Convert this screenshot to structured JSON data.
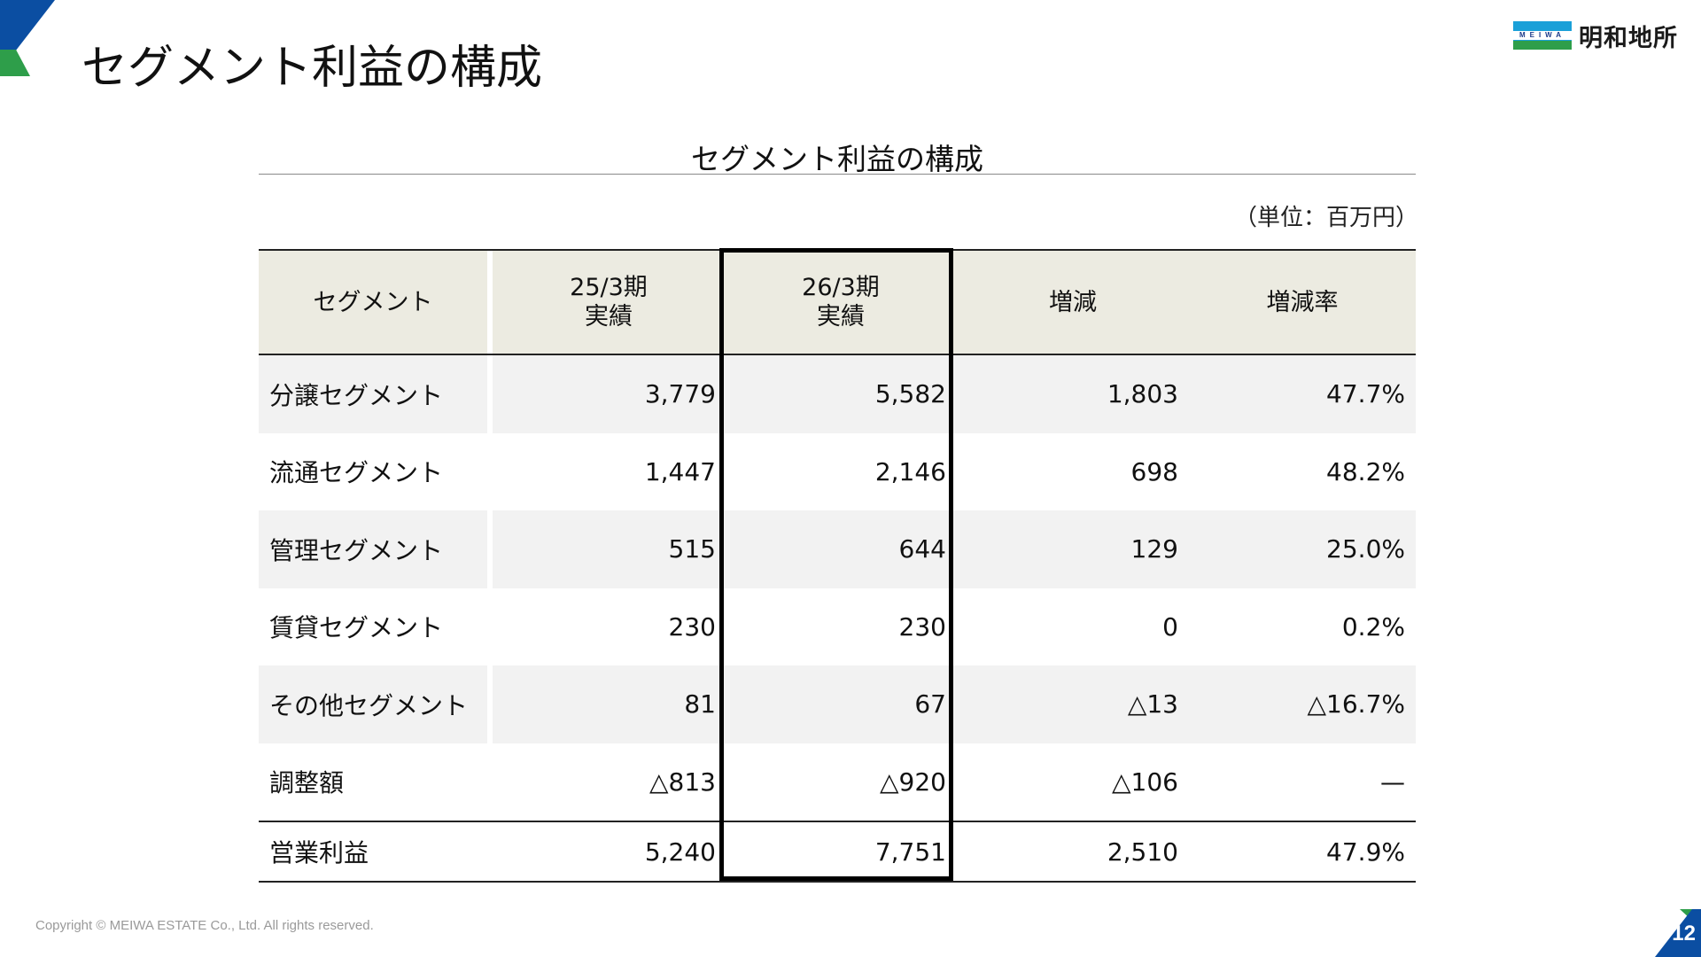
{
  "header": {
    "title": "セグメント利益の構成",
    "logo_mark_text": "MEIWA",
    "logo_name": "明和地所"
  },
  "colors": {
    "brand_blue": "#0b4ea2",
    "brand_green": "#2e9e4a",
    "header_fill": "#ecebe1",
    "row_shade": "#f2f2f2"
  },
  "table": {
    "title": "セグメント利益の構成",
    "unit": "（単位：百万円）",
    "columns": [
      {
        "line1": "セグメント",
        "line2": ""
      },
      {
        "line1": "25/3期",
        "line2": "実績"
      },
      {
        "line1": "26/3期",
        "line2": "実績"
      },
      {
        "line1": "増減",
        "line2": ""
      },
      {
        "line1": "増減率",
        "line2": ""
      }
    ],
    "highlighted_column": "26/3期 実績",
    "rows": [
      {
        "segment": "分譲セグメント",
        "fy25": "3,779",
        "fy26": "5,582",
        "change": "1,803",
        "rate": "47.7%"
      },
      {
        "segment": "流通セグメント",
        "fy25": "1,447",
        "fy26": "2,146",
        "change": "698",
        "rate": "48.2%"
      },
      {
        "segment": "管理セグメント",
        "fy25": "515",
        "fy26": "644",
        "change": "129",
        "rate": "25.0%"
      },
      {
        "segment": "賃貸セグメント",
        "fy25": "230",
        "fy26": "230",
        "change": "0",
        "rate": "0.2%"
      },
      {
        "segment": "その他セグメント",
        "fy25": "81",
        "fy26": "67",
        "change": "△13",
        "rate": "△16.7%"
      },
      {
        "segment": "調整額",
        "fy25": "△813",
        "fy26": "△920",
        "change": "△106",
        "rate": "—"
      }
    ],
    "total": {
      "segment": "営業利益",
      "fy25": "5,240",
      "fy26": "7,751",
      "change": "2,510",
      "rate": "47.9%"
    }
  },
  "footer": {
    "copyright": "Copyright © MEIWA ESTATE Co., Ltd. All rights reserved.",
    "page_number": "12"
  }
}
